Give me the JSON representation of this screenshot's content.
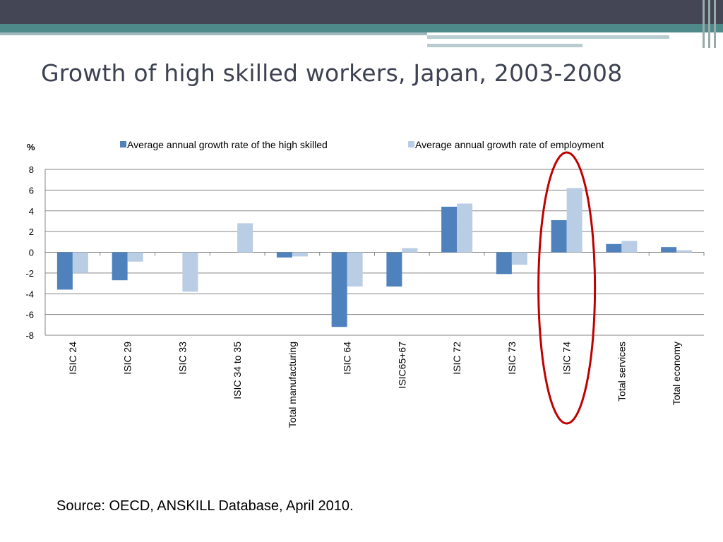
{
  "slide": {
    "title": "Growth of high skilled workers, Japan, 2003-2008",
    "source": "Source: OECD, ANSKILL Database, April 2010."
  },
  "colors": {
    "series_high_skilled": "#4f81bd",
    "series_employment": "#b9cde5",
    "highlight": "#c00000",
    "header_dark": "#444656",
    "header_teal": "#4e8a8a"
  },
  "chart_data": {
    "type": "bar",
    "ylabel": "%",
    "ylim": [
      -8,
      8
    ],
    "yticks": [
      8,
      6,
      4,
      2,
      0,
      -2,
      -4,
      -6,
      -8
    ],
    "grid": true,
    "legend_position": "top",
    "categories": [
      "ISIC 24",
      "ISIC 29",
      "ISIC 33",
      "ISIC 34 to 35",
      "Total manufacturing",
      "ISIC 64",
      "ISIC65+67",
      "ISIC 72",
      "ISIC 73",
      "ISIC 74",
      "Total services",
      "Total economy"
    ],
    "series": [
      {
        "name": "Average annual growth rate of the high skilled",
        "values": [
          -3.6,
          -2.7,
          0,
          0,
          -0.5,
          -7.2,
          -3.3,
          4.4,
          -2.1,
          3.1,
          0.8,
          0.5
        ]
      },
      {
        "name": "Average annual growth rate of employment",
        "values": [
          -2.0,
          -0.9,
          -3.8,
          2.8,
          -0.4,
          -3.3,
          0.4,
          4.7,
          -1.2,
          6.2,
          1.1,
          0.2
        ]
      }
    ],
    "highlighted_category": "ISIC 74"
  }
}
